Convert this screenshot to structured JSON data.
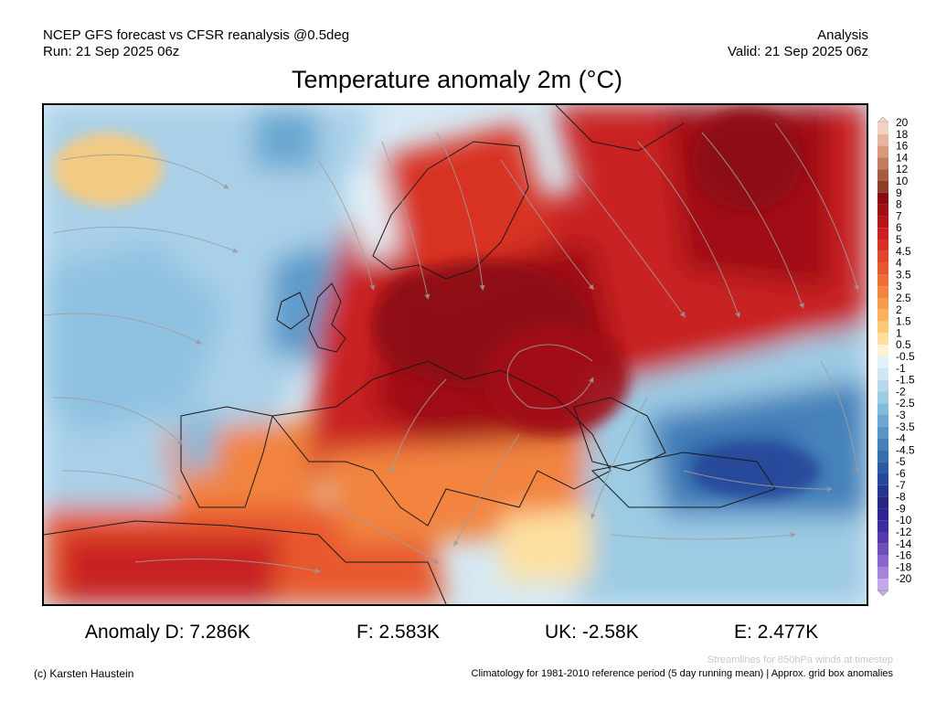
{
  "header": {
    "line1_left": "NCEP GFS forecast vs CFSR reanalysis @0.5deg",
    "line2_left": "Run: 21 Sep 2025 06z",
    "line1_right": "Analysis",
    "line2_right": "Valid: 21 Sep 2025 06z"
  },
  "title": "Temperature anomaly 2m (°C)",
  "colorbar": {
    "labels": [
      "20",
      "18",
      "16",
      "14",
      "12",
      "10",
      "9",
      "8",
      "7",
      "6",
      "5",
      "4.5",
      "4",
      "3.5",
      "3",
      "2.5",
      "2",
      "1.5",
      "1",
      "0.5",
      "-0.5",
      "-1",
      "-1.5",
      "-2",
      "-2.5",
      "-3",
      "-3.5",
      "-4",
      "-4.5",
      "-5",
      "-6",
      "-7",
      "-8",
      "-9",
      "-10",
      "-12",
      "-14",
      "-16",
      "-18",
      "-20"
    ],
    "colors": [
      "#f2d3c2",
      "#e6b59e",
      "#d9977c",
      "#c47a5e",
      "#a85b42",
      "#8c3c28",
      "#8c0a12",
      "#a00f17",
      "#b5161c",
      "#c92023",
      "#d83024",
      "#e14428",
      "#e8582f",
      "#ee6d37",
      "#f2843f",
      "#f69b4d",
      "#f9b35f",
      "#fbca78",
      "#fde0a0",
      "#fdf2d8",
      "#e5f1f8",
      "#d0e7f3",
      "#b6d9ec",
      "#9ccbe4",
      "#83bbdb",
      "#6aa8d1",
      "#5695c6",
      "#4481ba",
      "#366eae",
      "#2b5aa2",
      "#25479a",
      "#233591",
      "#262685",
      "#2f2496",
      "#3d2c9e",
      "#553aaa",
      "#6f4dbb",
      "#8a66cc",
      "#a585dc",
      "#c3a9ea"
    ]
  },
  "stats": {
    "d": "Anomaly D: 7.286K",
    "f": "F: 2.583K",
    "uk": "UK: -2.58K",
    "e": "E: 2.477K"
  },
  "footer": {
    "streamlines": "Streamlines for 850hPa winds at timestep",
    "copyright": "(c) Karsten Haustein",
    "climatology": "Climatology for 1981-2010 reference period (5 day running mean) | Approx. grid box anomalies"
  }
}
